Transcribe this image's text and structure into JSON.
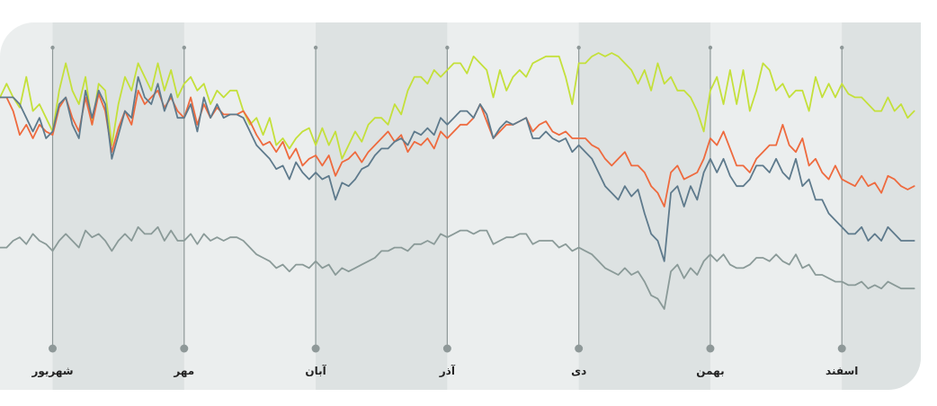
{
  "colors": {
    "card": "#ebeeee",
    "band": "#dde2e2",
    "divider": "#8e9898",
    "green": "#c4e03a",
    "orange": "#ee6a3e",
    "blue": "#5e7a8c",
    "gray": "#8a9a98"
  },
  "chart_data": {
    "type": "line",
    "title": "",
    "xlabel": "",
    "ylabel": "",
    "x_range": [
      0,
      140
    ],
    "ylim": [
      0,
      100
    ],
    "grid": false,
    "legend": "none",
    "months": [
      {
        "label": "شهریور",
        "x": 8
      },
      {
        "label": "مهر",
        "x": 28
      },
      {
        "label": "آبان",
        "x": 48
      },
      {
        "label": "آذر",
        "x": 68
      },
      {
        "label": "دی",
        "x": 88
      },
      {
        "label": "بهمن",
        "x": 108
      },
      {
        "label": "اسفند",
        "x": 128
      }
    ],
    "shaded_bands": [
      [
        8,
        28
      ],
      [
        48,
        68
      ],
      [
        88,
        108
      ],
      [
        128,
        140
      ]
    ],
    "series": [
      {
        "color_key": "green",
        "values": [
          82,
          86,
          82,
          79,
          88,
          78,
          80,
          76,
          72,
          84,
          92,
          84,
          80,
          88,
          74,
          86,
          84,
          68,
          80,
          88,
          84,
          92,
          88,
          84,
          92,
          84,
          90,
          82,
          86,
          88,
          84,
          86,
          80,
          84,
          82,
          84,
          84,
          78,
          74,
          76,
          71,
          76,
          68,
          70,
          67,
          70,
          72,
          73,
          68,
          73,
          68,
          72,
          64,
          68,
          72,
          69,
          74,
          76,
          76,
          74,
          80,
          77,
          84,
          88,
          88,
          86,
          90,
          88,
          90,
          92,
          92,
          89,
          94,
          92,
          90,
          82,
          90,
          84,
          88,
          90,
          88,
          92,
          93,
          94,
          94,
          94,
          88,
          80,
          92,
          92,
          94,
          95,
          94,
          95,
          94,
          92,
          90,
          86,
          90,
          84,
          92,
          86,
          88,
          84,
          84,
          82,
          78,
          72,
          84,
          88,
          80,
          90,
          80,
          90,
          78,
          84,
          92,
          90,
          84,
          86,
          82,
          84,
          84,
          78,
          88,
          82,
          86,
          82,
          86,
          83,
          82,
          82,
          80,
          78,
          78,
          82,
          78,
          80,
          76,
          78
        ],
        "data_name": "series-line-green"
      },
      {
        "color_key": "orange",
        "values": [
          82,
          82,
          78,
          71,
          74,
          70,
          74,
          72,
          71,
          79,
          82,
          76,
          72,
          82,
          74,
          83,
          78,
          66,
          73,
          78,
          74,
          84,
          80,
          82,
          84,
          79,
          82,
          78,
          76,
          82,
          74,
          80,
          76,
          79,
          77,
          77,
          77,
          78,
          75,
          71,
          68,
          69,
          66,
          69,
          64,
          67,
          62,
          64,
          65,
          62,
          65,
          59,
          63,
          64,
          66,
          63,
          66,
          68,
          70,
          72,
          69,
          71,
          66,
          69,
          68,
          70,
          67,
          72,
          70,
          72,
          74,
          74,
          76,
          80,
          75,
          70,
          72,
          74,
          74,
          75,
          76,
          72,
          74,
          75,
          72,
          71,
          72,
          70,
          70,
          70,
          68,
          67,
          64,
          62,
          64,
          66,
          62,
          62,
          60,
          56,
          54,
          50,
          60,
          62,
          58,
          59,
          60,
          64,
          70,
          68,
          72,
          67,
          62,
          62,
          60,
          64,
          66,
          68,
          68,
          74,
          68,
          66,
          70,
          62,
          64,
          60,
          58,
          62,
          58,
          57,
          56,
          59,
          56,
          57,
          54,
          59,
          58,
          56,
          55,
          56
        ],
        "data_name": "series-line-orange"
      },
      {
        "color_key": "blue",
        "values": [
          82,
          82,
          82,
          80,
          76,
          72,
          76,
          70,
          72,
          80,
          82,
          74,
          70,
          84,
          76,
          84,
          80,
          64,
          71,
          78,
          76,
          88,
          82,
          80,
          86,
          78,
          83,
          76,
          76,
          80,
          72,
          82,
          76,
          80,
          76,
          77,
          77,
          76,
          72,
          68,
          66,
          64,
          61,
          62,
          58,
          63,
          60,
          58,
          60,
          58,
          59,
          52,
          57,
          56,
          58,
          61,
          62,
          65,
          67,
          67,
          69,
          70,
          68,
          72,
          71,
          73,
          71,
          76,
          74,
          76,
          78,
          78,
          76,
          80,
          77,
          70,
          73,
          75,
          74,
          75,
          76,
          70,
          70,
          72,
          70,
          69,
          70,
          66,
          68,
          66,
          64,
          60,
          56,
          54,
          52,
          56,
          53,
          55,
          48,
          42,
          40,
          34,
          54,
          56,
          50,
          56,
          52,
          60,
          64,
          60,
          64,
          59,
          56,
          56,
          58,
          62,
          62,
          60,
          64,
          60,
          58,
          64,
          56,
          58,
          52,
          52,
          48,
          46,
          44,
          42,
          42,
          44,
          40,
          42,
          40,
          44,
          42,
          40,
          40,
          40
        ],
        "data_name": "series-line-blue"
      },
      {
        "color_key": "gray",
        "values": [
          38,
          38,
          40,
          41,
          39,
          42,
          40,
          39,
          37,
          40,
          42,
          40,
          38,
          43,
          41,
          42,
          40,
          37,
          40,
          42,
          40,
          44,
          42,
          42,
          44,
          40,
          43,
          40,
          40,
          42,
          39,
          42,
          40,
          41,
          40,
          41,
          41,
          40,
          38,
          36,
          35,
          34,
          32,
          33,
          31,
          33,
          33,
          32,
          34,
          32,
          33,
          30,
          32,
          31,
          32,
          33,
          34,
          35,
          37,
          37,
          38,
          38,
          37,
          39,
          39,
          40,
          39,
          42,
          41,
          42,
          43,
          43,
          42,
          43,
          43,
          39,
          40,
          41,
          41,
          42,
          42,
          39,
          40,
          40,
          40,
          38,
          39,
          37,
          38,
          37,
          36,
          34,
          32,
          31,
          30,
          32,
          30,
          31,
          28,
          24,
          23,
          20,
          31,
          33,
          29,
          32,
          30,
          34,
          36,
          34,
          36,
          33,
          32,
          32,
          33,
          35,
          35,
          34,
          36,
          34,
          33,
          36,
          32,
          33,
          30,
          30,
          29,
          28,
          28,
          27,
          27,
          28,
          26,
          27,
          26,
          28,
          27,
          26,
          26,
          26
        ],
        "data_name": "series-line-gray"
      }
    ]
  }
}
